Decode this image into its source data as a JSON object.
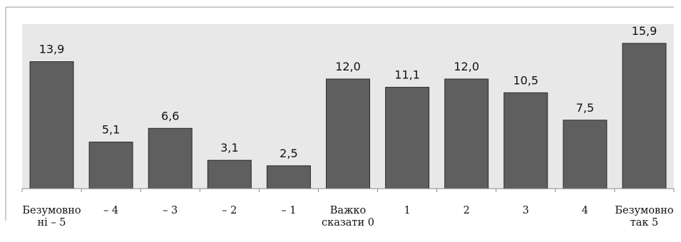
{
  "chart_data": {
    "type": "bar",
    "categories": [
      [
        "Безумовно",
        "ні – 5"
      ],
      [
        "– 4"
      ],
      [
        "– 3"
      ],
      [
        "– 2"
      ],
      [
        "– 1"
      ],
      [
        "Важко",
        "сказати 0"
      ],
      [
        "1"
      ],
      [
        "2"
      ],
      [
        "3"
      ],
      [
        "4"
      ],
      [
        "Безумовно",
        "так 5"
      ]
    ],
    "values": [
      13.9,
      5.1,
      6.6,
      3.1,
      2.5,
      12.0,
      11.1,
      12.0,
      10.5,
      7.5,
      15.9
    ],
    "value_labels": [
      "13,9",
      "5,1",
      "6,6",
      "3,1",
      "2,5",
      "12,0",
      "11,1",
      "12,0",
      "10,5",
      "7,5",
      "15,9"
    ],
    "ylim": [
      0,
      18
    ],
    "grid": false,
    "legend": "none",
    "colors": {
      "bar": "#5f5f5f",
      "bar_edge": "#2a2a2a",
      "plot_bg": "#e8e8e8",
      "axis": "#8a8a8a",
      "frame": "#9a9a9a"
    }
  }
}
